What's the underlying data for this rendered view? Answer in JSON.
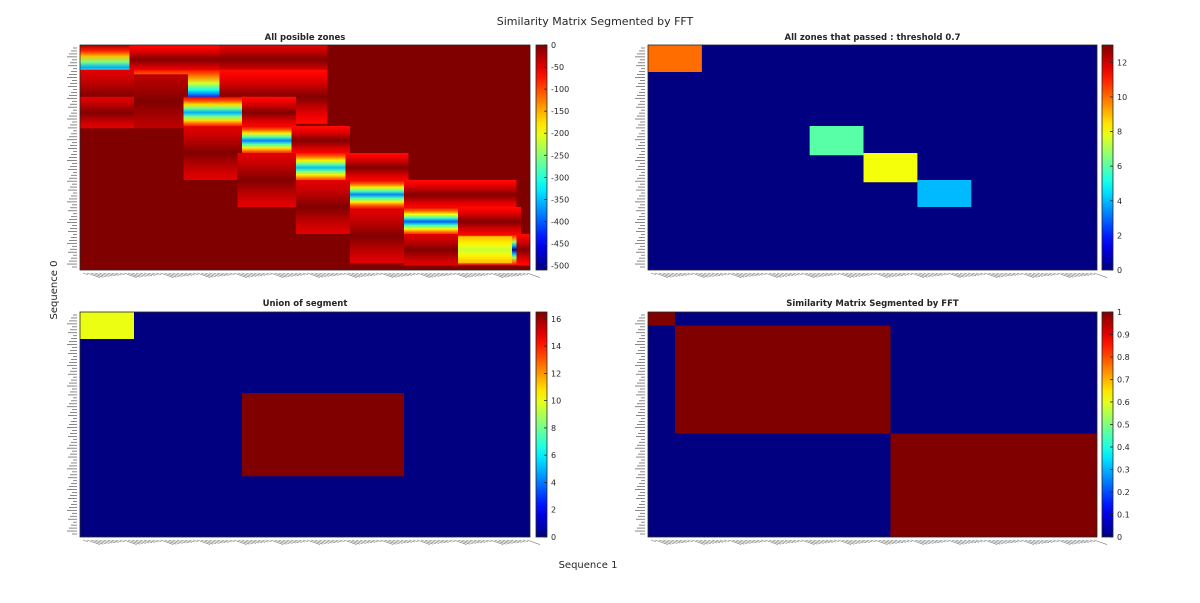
{
  "figure": {
    "title": "Similarity Matrix Segmented by FFT",
    "xlabel": "Sequence 1",
    "ylabel": "Sequence 0"
  },
  "chart_data": [
    {
      "type": "heatmap",
      "title": "All posible zones",
      "colormap": "jet",
      "clim": [
        -510,
        0
      ],
      "colorbar_ticks": [
        0,
        -50,
        -100,
        -150,
        -200,
        -250,
        -300,
        -350,
        -400,
        -450,
        -500
      ],
      "x_domain": [
        0,
        100
      ],
      "y_domain": [
        0,
        100
      ],
      "background": 0,
      "kind": "gradient-blocks",
      "blocks": [
        [
          0,
          20,
          0,
          20,
          -360,
          -20
        ],
        [
          11,
          35,
          0,
          13,
          0,
          -70
        ],
        [
          31,
          55,
          0,
          13,
          0,
          -50
        ],
        [
          0,
          13,
          11,
          35,
          0,
          -50
        ],
        [
          12,
          31,
          11,
          35,
          -420,
          -70
        ],
        [
          31,
          55,
          11,
          35,
          0,
          -70
        ],
        [
          12,
          24,
          13,
          37,
          0,
          -30
        ],
        [
          23,
          43,
          23,
          37,
          -360,
          -50
        ],
        [
          36,
          48,
          23,
          37,
          0,
          -70
        ],
        [
          0,
          12,
          23,
          37,
          0,
          -50
        ],
        [
          35,
          55,
          36,
          49,
          -380,
          -50
        ],
        [
          47,
          60,
          36,
          49,
          0,
          -70
        ],
        [
          23,
          36,
          36,
          60,
          0,
          -50
        ],
        [
          47,
          72,
          48,
          61,
          -350,
          -70
        ],
        [
          59,
          73,
          48,
          61,
          0,
          -70
        ],
        [
          35,
          48,
          48,
          72,
          0,
          -50
        ],
        [
          60,
          82,
          60,
          73,
          -380,
          -50
        ],
        [
          72,
          97,
          60,
          73,
          0,
          -70
        ],
        [
          48,
          60,
          60,
          84,
          0,
          -50
        ],
        [
          72,
          95,
          72,
          85,
          -400,
          -50
        ],
        [
          84,
          98,
          72,
          85,
          0,
          -70
        ],
        [
          60,
          72,
          73,
          97,
          0,
          -50
        ],
        [
          84,
          97,
          84,
          98,
          -500,
          -50
        ],
        [
          97,
          100,
          84,
          98,
          0,
          -70
        ],
        [
          72,
          84,
          84,
          98,
          0,
          -50
        ],
        [
          84,
          96,
          85,
          97,
          -220,
          -160
        ]
      ]
    },
    {
      "type": "heatmap",
      "title": "All zones that passed : threshold 0.7",
      "colormap": "jet",
      "clim": [
        0,
        13
      ],
      "colorbar_ticks": [
        0,
        2,
        4,
        6,
        8,
        10,
        12
      ],
      "x_domain": [
        0,
        100
      ],
      "y_domain": [
        0,
        100
      ],
      "background": 0,
      "kind": "blocks",
      "blocks": [
        [
          0,
          12,
          0,
          12,
          10
        ],
        [
          36,
          48,
          36,
          49,
          6
        ],
        [
          48,
          60,
          48,
          61,
          8
        ],
        [
          60,
          72,
          60,
          72,
          4
        ]
      ]
    },
    {
      "type": "heatmap",
      "title": "Union of segment",
      "colormap": "jet",
      "clim": [
        0,
        16.5
      ],
      "colorbar_ticks": [
        0,
        2,
        4,
        6,
        8,
        10,
        12,
        14,
        16
      ],
      "x_domain": [
        0,
        100
      ],
      "y_domain": [
        0,
        100
      ],
      "background": 0,
      "kind": "blocks",
      "blocks": [
        [
          0,
          12,
          0,
          12,
          10
        ],
        [
          36,
          72,
          36,
          73,
          16.5
        ]
      ]
    },
    {
      "type": "heatmap",
      "title": "Similarity Matrix Segmented by FFT",
      "colormap": "jet",
      "clim": [
        0,
        1
      ],
      "colorbar_ticks": [
        0,
        0.1,
        0.2,
        0.3,
        0.4,
        0.5,
        0.6,
        0.7,
        0.8,
        0.9,
        1
      ],
      "x_domain": [
        0,
        100
      ],
      "y_domain": [
        0,
        100
      ],
      "background": 0,
      "kind": "blocks",
      "blocks": [
        [
          0,
          6,
          0,
          6,
          1
        ],
        [
          6,
          54,
          6,
          54,
          1
        ],
        [
          54,
          100,
          54,
          100,
          1
        ]
      ]
    }
  ]
}
